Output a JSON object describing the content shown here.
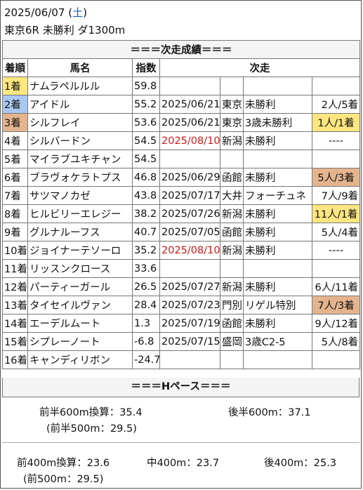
{
  "header": {
    "date": "2025/06/07",
    "weekday": "土",
    "race": "東京6R 未勝利 ダ1300m"
  },
  "section_title": "＝＝＝次走成績＝＝＝",
  "columns": {
    "rank": "着順",
    "horse": "馬名",
    "index": "指数",
    "next": "次走"
  },
  "rows": [
    {
      "rank": "1着",
      "horse": "ナムラペルルル",
      "index": "59.8",
      "date": "",
      "track": "",
      "race": "",
      "result": "",
      "rank_color": "gold"
    },
    {
      "rank": "2着",
      "horse": "アイドル",
      "index": "55.2",
      "date": "2025/06/21",
      "track": "東京",
      "race": "未勝利",
      "result": "2人/5着",
      "rank_color": "blue"
    },
    {
      "rank": "3着",
      "horse": "シルフレイ",
      "index": "53.6",
      "date": "2025/06/21",
      "track": "東京",
      "race": "3歳未勝利",
      "result": "1人/1着",
      "rank_color": "tan",
      "result_color": "gold"
    },
    {
      "rank": "4着",
      "horse": "シルバードン",
      "index": "54.5",
      "date": "2025/08/10",
      "date_red": true,
      "track": "新潟",
      "race": "未勝利",
      "result": "----"
    },
    {
      "rank": "5着",
      "horse": "マイラブユキチャン",
      "index": "54.5",
      "date": "",
      "track": "",
      "race": "",
      "result": ""
    },
    {
      "rank": "6着",
      "horse": "ブラヴォケラトプス",
      "index": "46.8",
      "date": "2025/06/29",
      "track": "函館",
      "race": "未勝利",
      "result": "5人/3着",
      "result_color": "tan"
    },
    {
      "rank": "7着",
      "horse": "サツマノカゼ",
      "index": "43.8",
      "date": "2025/07/17",
      "track": "大井",
      "race": "フォーチュネ",
      "result": "7人/9着"
    },
    {
      "rank": "8着",
      "horse": "ヒルビリーエレジー",
      "index": "38.2",
      "date": "2025/07/26",
      "track": "新潟",
      "race": "未勝利",
      "result": "11人/1着",
      "result_color": "gold"
    },
    {
      "rank": "9着",
      "horse": "グルナルーフス",
      "index": "40.7",
      "date": "2025/07/05",
      "track": "函館",
      "race": "未勝利",
      "result": "5人/4着"
    },
    {
      "rank": "10着",
      "horse": "ジョイナーテソーロ",
      "index": "35.2",
      "date": "2025/08/10",
      "date_red": true,
      "track": "新潟",
      "race": "未勝利",
      "result": "----"
    },
    {
      "rank": "11着",
      "horse": "リッスンクロース",
      "index": "33.6",
      "date": "",
      "track": "",
      "race": "",
      "result": ""
    },
    {
      "rank": "12着",
      "horse": "パーティーガール",
      "index": "26.5",
      "date": "2025/07/27",
      "track": "新潟",
      "race": "未勝利",
      "result": "6人/11着"
    },
    {
      "rank": "13着",
      "horse": "タイセイルヴァン",
      "index": "28.4",
      "date": "2025/07/23",
      "track": "門別",
      "race": "リゲル特別",
      "result": "7人/3着",
      "result_color": "tan"
    },
    {
      "rank": "14着",
      "horse": "エーデルムート",
      "index": "1.3",
      "date": "2025/07/19",
      "track": "函館",
      "race": "未勝利",
      "result": "9人/12着"
    },
    {
      "rank": "15着",
      "horse": "シプレーノート",
      "index": "-6.8",
      "date": "2025/07/15",
      "track": "盛岡",
      "race": "3歳C2-5",
      "result": "5人/8着"
    },
    {
      "rank": "16着",
      "horse": "キャンディリボン",
      "index": "-24.7",
      "date": "",
      "track": "",
      "race": "",
      "result": ""
    }
  ],
  "pace": {
    "title": "＝＝＝Hペース＝＝＝",
    "first600": "前半600m換算：35.4",
    "last600": "後半600m：37.1",
    "first500": "(前半500m：29.5)",
    "first400": "前400m換算：23.6",
    "mid400": "中400m：23.7",
    "last400": "後400m：25.3",
    "front500": "(前500m：29.5)"
  },
  "colors": {
    "gold": "#ffe680",
    "blue": "#a9c8f0",
    "tan": "#e4b48e",
    "red": "#d01818",
    "weekday": "#1a56c8"
  }
}
